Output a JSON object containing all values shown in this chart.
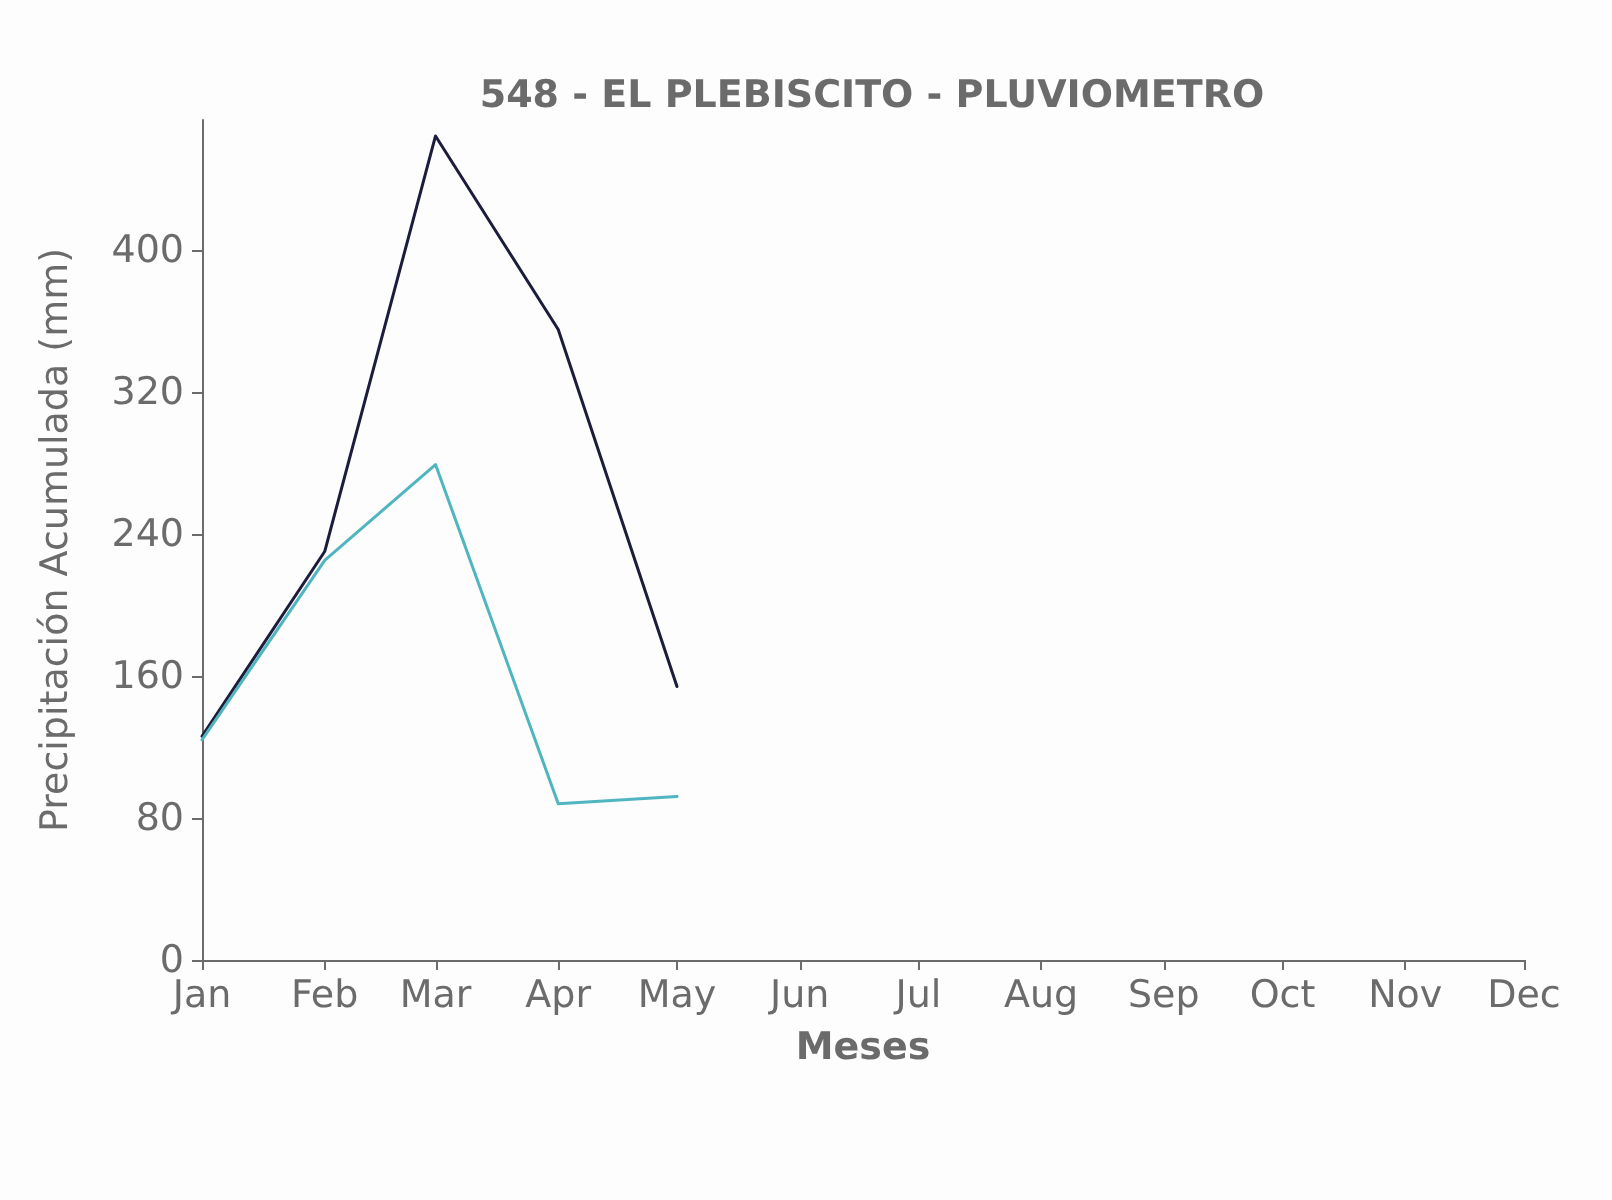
{
  "chart_data": {
    "type": "line",
    "title": "548 - EL PLEBISCITO - PLUVIOMETRO",
    "xlabel": "Meses",
    "ylabel": "Precipitación Acumulada (mm)",
    "x": [
      "--01-01",
      "--02-01",
      "--03-01",
      "--04-01",
      "--05-01"
    ],
    "series": [
      {
        "color": "#1c1c3c",
        "values": [
          126,
          230,
          464,
          355,
          154
        ]
      },
      {
        "color": "#4fb5c0",
        "values": [
          124,
          225,
          279,
          88,
          92
        ]
      }
    ],
    "xlim": [
      "--01-01",
      "--12-01"
    ],
    "xticks": [
      {
        "value": "--01-01",
        "label": "Jan"
      },
      {
        "value": "--02-01",
        "label": "Feb"
      },
      {
        "value": "--03-01",
        "label": "Mar"
      },
      {
        "value": "--04-01",
        "label": "Apr"
      },
      {
        "value": "--05-01",
        "label": "May"
      },
      {
        "value": "--06-01",
        "label": "Jun"
      },
      {
        "value": "--07-01",
        "label": "Jul"
      },
      {
        "value": "--08-01",
        "label": "Aug"
      },
      {
        "value": "--09-01",
        "label": "Sep"
      },
      {
        "value": "--10-01",
        "label": "Oct"
      },
      {
        "value": "--11-01",
        "label": "Nov"
      },
      {
        "value": "--12-01",
        "label": "Dec"
      }
    ],
    "ylim": [
      0,
      473
    ],
    "yticks": [
      0,
      80,
      160,
      240,
      320,
      400
    ],
    "grid": false,
    "marker": "none",
    "line_style": "solid"
  }
}
